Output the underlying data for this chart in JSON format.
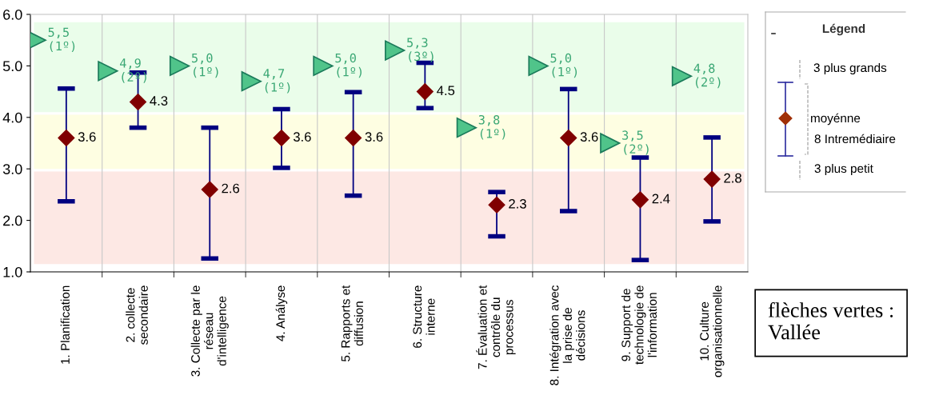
{
  "chart_data": {
    "type": "scatter",
    "categories": [
      "1. Planification",
      "2. collecte\nsecondaire",
      "3. Collecte par le\nréseau\nd'intelligence",
      "4. Anályse",
      "5. Rapports et\ndiffusion",
      "6. Structure\ninterne",
      "7. Évaluation et\ncontrôle du\nprocessus",
      "8. Intégration avec\nla prise de\ndécisions",
      "9. Support de\ntechnologie de\nl'information",
      "10. Culture\norganisationnelle"
    ],
    "series": [
      {
        "marker": "diamond",
        "color": "#800000",
        "data_labels": true,
        "values": [
          3.6,
          4.3,
          2.6,
          3.6,
          3.6,
          4.5,
          2.3,
          3.6,
          2.4,
          2.8
        ],
        "errors": [
          [
            2.37,
            4.56
          ],
          [
            3.8,
            4.87
          ],
          [
            1.26,
            3.8
          ],
          [
            3.02,
            4.16
          ],
          [
            2.48,
            4.49
          ],
          [
            4.18,
            5.06
          ],
          [
            1.69,
            2.55
          ],
          [
            2.18,
            4.55
          ],
          [
            1.23,
            3.22
          ],
          [
            1.98,
            3.61
          ]
        ]
      },
      {
        "marker": "triangle",
        "color": "#50c48a",
        "values": [
          5.5,
          4.9,
          5.0,
          4.7,
          5.0,
          5.3,
          3.8,
          5.0,
          3.5,
          4.8
        ],
        "value_labels": [
          "5,5\n(1º)",
          "4,9\n(2º)",
          "5,0\n(1º)",
          "4,7\n(1º)",
          "5,0\n(1º)",
          "5,3\n(3º)",
          "3,8\n(1º)",
          "5,0\n(1º)",
          "3,5\n(2º)",
          "4,8\n(2º)"
        ]
      }
    ],
    "bands": [
      {
        "axis": "y",
        "from": 1.15,
        "to": 2.95,
        "color": "#fde8e4"
      },
      {
        "axis": "y",
        "from": 3.0,
        "to": 4.05,
        "color": "#fefee2"
      },
      {
        "axis": "y",
        "from": 4.1,
        "to": 5.85,
        "color": "#eafdea"
      }
    ],
    "ylim": [
      1,
      6
    ],
    "yticks": [
      {
        "value": 1,
        "label": "1.0"
      },
      {
        "value": 2,
        "label": "2.0"
      },
      {
        "value": 3,
        "label": "3.0"
      },
      {
        "value": 4,
        "label": "4.0"
      },
      {
        "value": 5,
        "label": "5.0"
      },
      {
        "value": 6,
        "label": "6.0"
      }
    ],
    "grid": "x",
    "annotations": [
      "Légend",
      "3 plus grands",
      "moyénne",
      "8 Intremédiaire",
      "3 plus petit",
      "flèches vertes :\nVallée"
    ]
  }
}
